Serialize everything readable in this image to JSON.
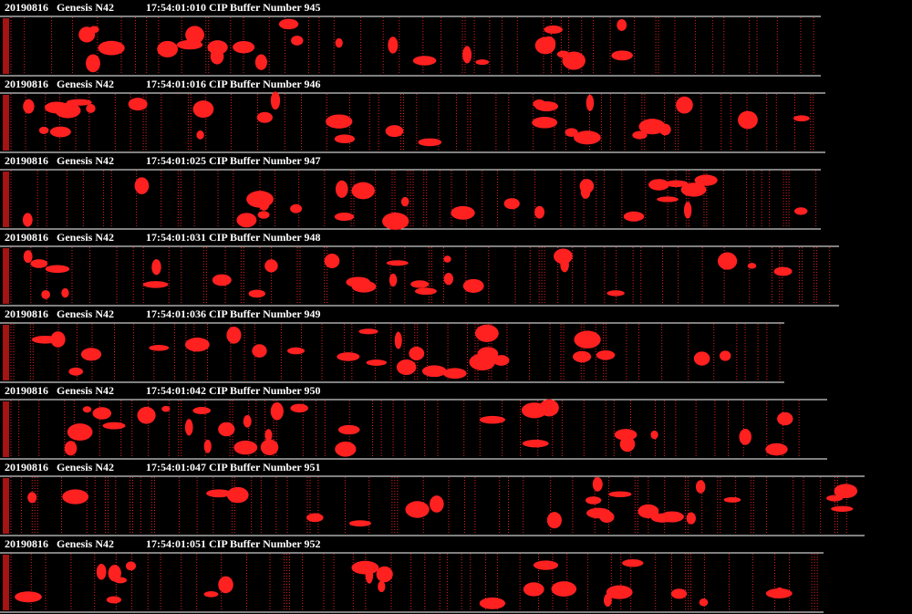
{
  "buffers": [
    {
      "date": "20190816",
      "probe": "Genesis N42",
      "info": "17:54:01:010 CIP Buffer Number 945"
    },
    {
      "date": "20190816",
      "probe": "Genesis N42",
      "info": "17:54:01:016 CIP Buffer Number 946"
    },
    {
      "date": "20190816",
      "probe": "Genesis N42",
      "info": "17:54:01:025 CIP Buffer Number 947"
    },
    {
      "date": "20190816",
      "probe": "Genesis N42",
      "info": "17:54:01:031 CIP Buffer Number 948"
    },
    {
      "date": "20190816",
      "probe": "Genesis N42",
      "info": "17:54:01:036 CIP Buffer Number 949"
    },
    {
      "date": "20190816",
      "probe": "Genesis N42",
      "info": "17:54:01:042 CIP Buffer Number 950"
    },
    {
      "date": "20190816",
      "probe": "Genesis N42",
      "info": "17:54:01:047 CIP Buffer Number 951"
    },
    {
      "date": "20190816",
      "probe": "Genesis N42",
      "info": "17:54:01:051 CIP Buffer Number 952"
    }
  ]
}
